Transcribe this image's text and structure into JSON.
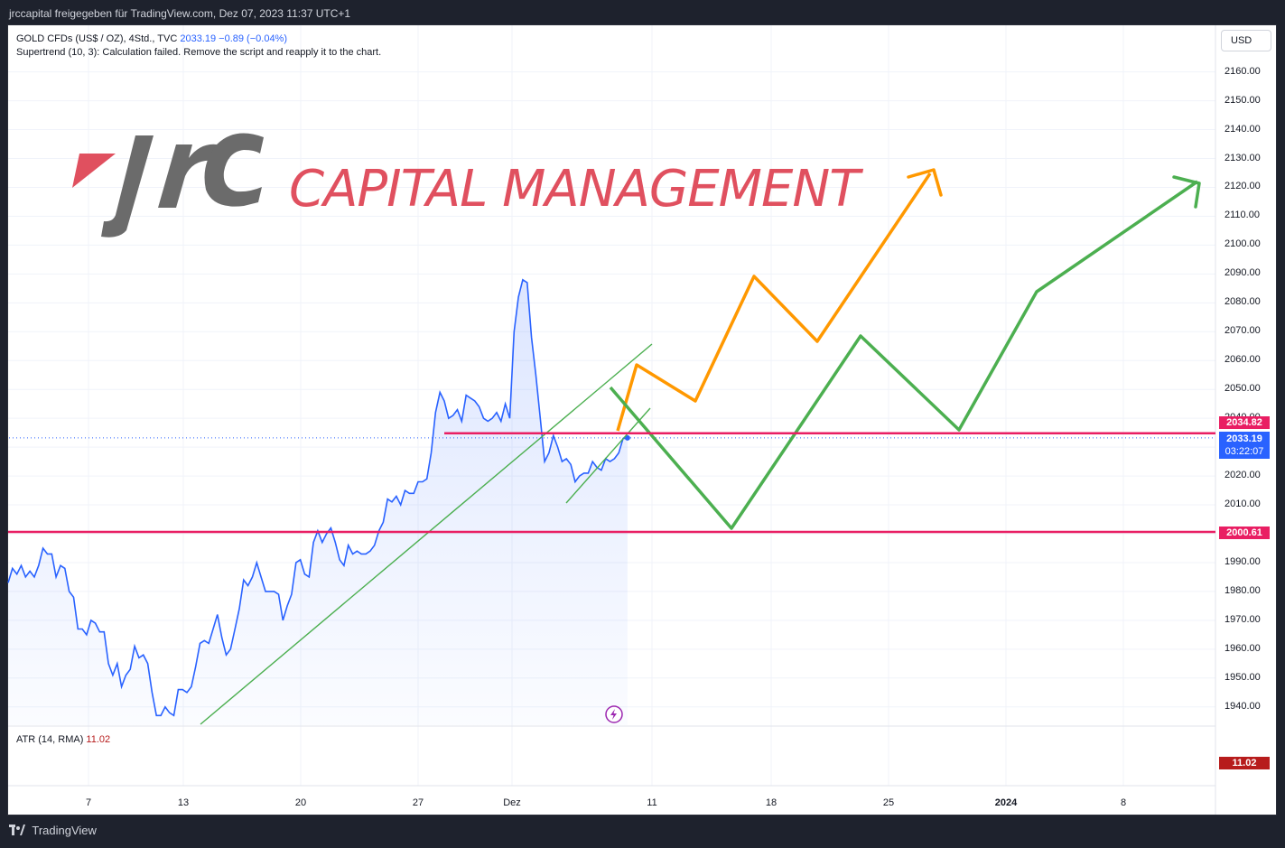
{
  "header": {
    "publish_line": "jrccapital freigegeben für TradingView.com, Dez 07, 2023 11:37 UTC+1"
  },
  "legend": {
    "symbol": "GOLD CFDs (US$ / OZ), 4Std., TVC",
    "price": "2033.19",
    "change": "−0.89 (−0.04%)",
    "indicator": "Supertrend (10, 3): Calculation failed. Remove the script and reapply it to the chart."
  },
  "atr": {
    "label": "ATR (14, RMA)",
    "value": "11.02",
    "badge": "11.02"
  },
  "currency_button": "USD",
  "logo": {
    "text": "CAPITAL MANAGEMENT"
  },
  "price_tags": {
    "upper": "2034.82",
    "last_price": "2033.19",
    "countdown": "03:22:07",
    "lower": "2000.61"
  },
  "footer": {
    "brand": "TradingView"
  },
  "colors": {
    "price_line": "#2962ff",
    "level_line": "#e91e63",
    "trendline": "#4caf50",
    "orange_path": "#ff9800",
    "green_path": "#4caf50",
    "logo_red": "#e0505f",
    "logo_grey": "#6b6b6b"
  },
  "chart_data": {
    "type": "line",
    "title": "GOLD CFDs (US$ / OZ), 4Std., TVC",
    "y_axis": {
      "min": 1935,
      "max": 2165,
      "tick_labels": [
        "2160.00",
        "2150.00",
        "2140.00",
        "2130.00",
        "2120.00",
        "2110.00",
        "2100.00",
        "2090.00",
        "2080.00",
        "2070.00",
        "2060.00",
        "2050.00",
        "2040.00",
        "2030.00",
        "2020.00",
        "2010.00",
        "2000.00",
        "1990.00",
        "1980.00",
        "1970.00",
        "1960.00",
        "1950.00",
        "1940.00"
      ]
    },
    "x_axis": {
      "tick_labels": [
        "7",
        "13",
        "20",
        "27",
        "Dez",
        "11",
        "18",
        "25",
        "2024",
        "8"
      ]
    },
    "grid": true,
    "series": [
      {
        "values": [
          1983,
          1988,
          1986,
          1989,
          1985,
          1987,
          1985,
          1989,
          1995,
          1993,
          1993,
          1985,
          1989,
          1988,
          1980,
          1978,
          1967,
          1967,
          1965,
          1970,
          1969,
          1966,
          1966,
          1955,
          1951,
          1955,
          1947,
          1951,
          1953,
          1961,
          1957,
          1958,
          1955,
          1945,
          1937,
          1937,
          1940,
          1938,
          1937,
          1946,
          1946,
          1945,
          1947,
          1954,
          1962,
          1963,
          1962,
          1967,
          1972,
          1964,
          1958,
          1960,
          1967,
          1974,
          1984,
          1982,
          1985,
          1990,
          1985,
          1980,
          1980,
          1980,
          1979,
          1970,
          1975,
          1979,
          1990,
          1991,
          1986,
          1985,
          1997,
          2001,
          1997,
          2000,
          2002,
          1997,
          1991,
          1989,
          1996,
          1993,
          1994,
          1993,
          1993,
          1994,
          1996,
          2001,
          2004,
          2012,
          2011,
          2013,
          2010,
          2015,
          2014,
          2014,
          2018,
          2018,
          2019,
          2028,
          2042,
          2049,
          2046,
          2040,
          2041,
          2043,
          2039,
          2048,
          2047,
          2046,
          2044,
          2040,
          2039,
          2040,
          2042,
          2039,
          2045,
          2040,
          2070,
          2082,
          2088,
          2087,
          2068,
          2055,
          2040,
          2025,
          2028,
          2034,
          2030,
          2025,
          2026,
          2024,
          2018,
          2020,
          2021,
          2021,
          2025,
          2023,
          2022,
          2026,
          2025,
          2026,
          2028,
          2033,
          2033
        ]
      }
    ],
    "horizontal_levels": [
      2034.82,
      2000.61
    ],
    "last_price": 2033.19
  }
}
